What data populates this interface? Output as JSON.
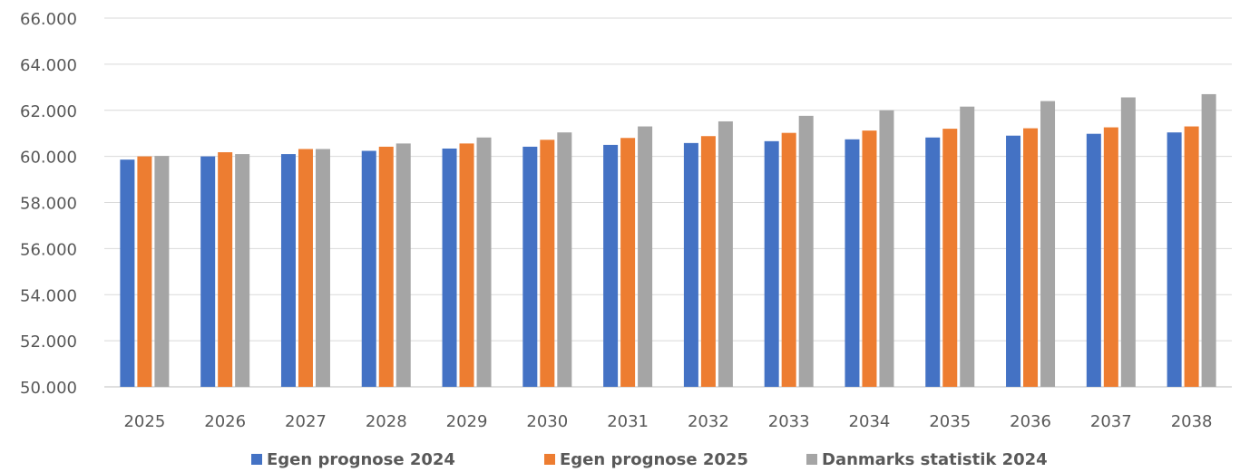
{
  "chart_data": {
    "type": "bar",
    "title": "",
    "xlabel": "",
    "ylabel": "",
    "ylim": [
      50000,
      66000
    ],
    "yticks": [
      50000,
      52000,
      54000,
      56000,
      58000,
      60000,
      62000,
      64000,
      66000
    ],
    "ytick_labels": [
      "50.000",
      "52.000",
      "54.000",
      "56.000",
      "58.000",
      "60.000",
      "62.000",
      "64.000",
      "66.000"
    ],
    "grid": "horizontal",
    "legend_position": "bottom",
    "categories": [
      "2025",
      "2026",
      "2027",
      "2028",
      "2029",
      "2030",
      "2031",
      "2032",
      "2033",
      "2034",
      "2035",
      "2036",
      "2037",
      "2038"
    ],
    "series": [
      {
        "name": "Egen prognose 2024",
        "color": "#4472c4",
        "values": [
          59860,
          60000,
          60100,
          60240,
          60340,
          60420,
          60500,
          60580,
          60660,
          60740,
          60820,
          60900,
          60980,
          61040
        ]
      },
      {
        "name": "Egen prognose 2025",
        "color": "#ed7d31",
        "values": [
          60000,
          60180,
          60320,
          60420,
          60560,
          60720,
          60800,
          60880,
          61020,
          61120,
          61200,
          61220,
          61260,
          61300
        ]
      },
      {
        "name": "Danmarks statistik 2024",
        "color": "#a5a5a5",
        "values": [
          60020,
          60100,
          60320,
          60560,
          60820,
          61040,
          61300,
          61520,
          61760,
          62000,
          62160,
          62400,
          62560,
          62700
        ]
      }
    ]
  }
}
